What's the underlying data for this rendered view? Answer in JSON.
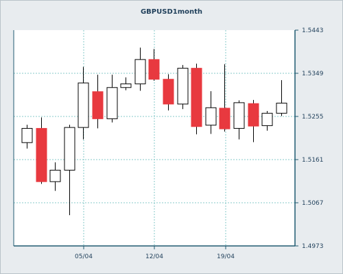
{
  "chart_data": {
    "type": "candlestick",
    "title": "GBPUSD1month",
    "y_axis": {
      "position": "right",
      "range": [
        1.4973,
        1.5443
      ],
      "ticks": [
        "1.5443",
        "1.5349",
        "1.5255",
        "1.5161",
        "1.5067",
        "1.4973"
      ]
    },
    "x_axis": {
      "tick_labels": [
        "05/04",
        "12/04",
        "19/04"
      ]
    },
    "colors": {
      "up": "#ffffff",
      "down": "#e8393f",
      "outline": "#000000"
    },
    "candles": [
      {
        "open": 1.5198,
        "high": 1.5237,
        "low": 1.5185,
        "close": 1.5229,
        "dir": "up"
      },
      {
        "open": 1.5229,
        "high": 1.5253,
        "low": 1.5108,
        "close": 1.5113,
        "dir": "down"
      },
      {
        "open": 1.5113,
        "high": 1.5155,
        "low": 1.5093,
        "close": 1.5138,
        "dir": "up"
      },
      {
        "open": 1.5138,
        "high": 1.5237,
        "low": 1.504,
        "close": 1.5231,
        "dir": "up"
      },
      {
        "open": 1.5231,
        "high": 1.5363,
        "low": 1.5205,
        "close": 1.5328,
        "dir": "up"
      },
      {
        "open": 1.5309,
        "high": 1.5346,
        "low": 1.5229,
        "close": 1.525,
        "dir": "down"
      },
      {
        "open": 1.525,
        "high": 1.5346,
        "low": 1.5242,
        "close": 1.5318,
        "dir": "up"
      },
      {
        "open": 1.5318,
        "high": 1.534,
        "low": 1.5312,
        "close": 1.5326,
        "dir": "up"
      },
      {
        "open": 1.5326,
        "high": 1.5405,
        "low": 1.5311,
        "close": 1.5379,
        "dir": "up"
      },
      {
        "open": 1.5379,
        "high": 1.5402,
        "low": 1.5333,
        "close": 1.5336,
        "dir": "down"
      },
      {
        "open": 1.5336,
        "high": 1.5347,
        "low": 1.5268,
        "close": 1.5282,
        "dir": "down"
      },
      {
        "open": 1.5282,
        "high": 1.5367,
        "low": 1.5271,
        "close": 1.536,
        "dir": "up"
      },
      {
        "open": 1.536,
        "high": 1.537,
        "low": 1.5216,
        "close": 1.5233,
        "dir": "down"
      },
      {
        "open": 1.5236,
        "high": 1.531,
        "low": 1.5217,
        "close": 1.5274,
        "dir": "up"
      },
      {
        "open": 1.5273,
        "high": 1.5369,
        "low": 1.5222,
        "close": 1.5228,
        "dir": "down"
      },
      {
        "open": 1.5229,
        "high": 1.529,
        "low": 1.5205,
        "close": 1.5285,
        "dir": "up"
      },
      {
        "open": 1.5283,
        "high": 1.5291,
        "low": 1.5199,
        "close": 1.5234,
        "dir": "down"
      },
      {
        "open": 1.5235,
        "high": 1.5267,
        "low": 1.5224,
        "close": 1.5262,
        "dir": "up"
      },
      {
        "open": 1.5262,
        "high": 1.5334,
        "low": 1.5256,
        "close": 1.5284,
        "dir": "up"
      }
    ]
  }
}
